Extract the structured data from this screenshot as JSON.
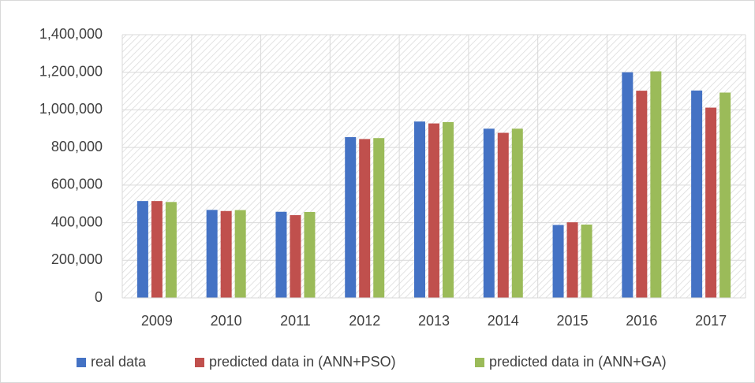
{
  "chart_data": {
    "type": "bar",
    "categories": [
      "2009",
      "2010",
      "2011",
      "2012",
      "2013",
      "2014",
      "2015",
      "2016",
      "2017"
    ],
    "series": [
      {
        "name": "real data",
        "color": "#4472c4",
        "values": [
          515000,
          468000,
          458000,
          855000,
          938000,
          900000,
          388000,
          1200000,
          1103000
        ]
      },
      {
        "name": "predicted data in (ANN+PSO)",
        "color": "#c0504d",
        "values": [
          515000,
          462000,
          440000,
          845000,
          928000,
          878000,
          402000,
          1102000,
          1012000
        ]
      },
      {
        "name": "predicted data in (ANN+GA)",
        "color": "#9bbb59",
        "values": [
          510000,
          467000,
          457000,
          850000,
          935000,
          900000,
          390000,
          1205000,
          1092000
        ]
      }
    ],
    "ylim": [
      0,
      1400000
    ],
    "yticks": [
      0,
      {
        "value": 200000,
        "label": "200,000"
      },
      {
        "value": 400000,
        "label": "400,000"
      },
      {
        "value": 600000,
        "label": "600,000"
      },
      {
        "value": 800000,
        "label": "800,000"
      },
      {
        "value": 1000000,
        "label": "1,000,000"
      },
      {
        "value": 1200000,
        "label": "1,200,000"
      },
      {
        "value": 1400000,
        "label": "1,400,000"
      }
    ],
    "grid": true,
    "legend": "bottom"
  }
}
